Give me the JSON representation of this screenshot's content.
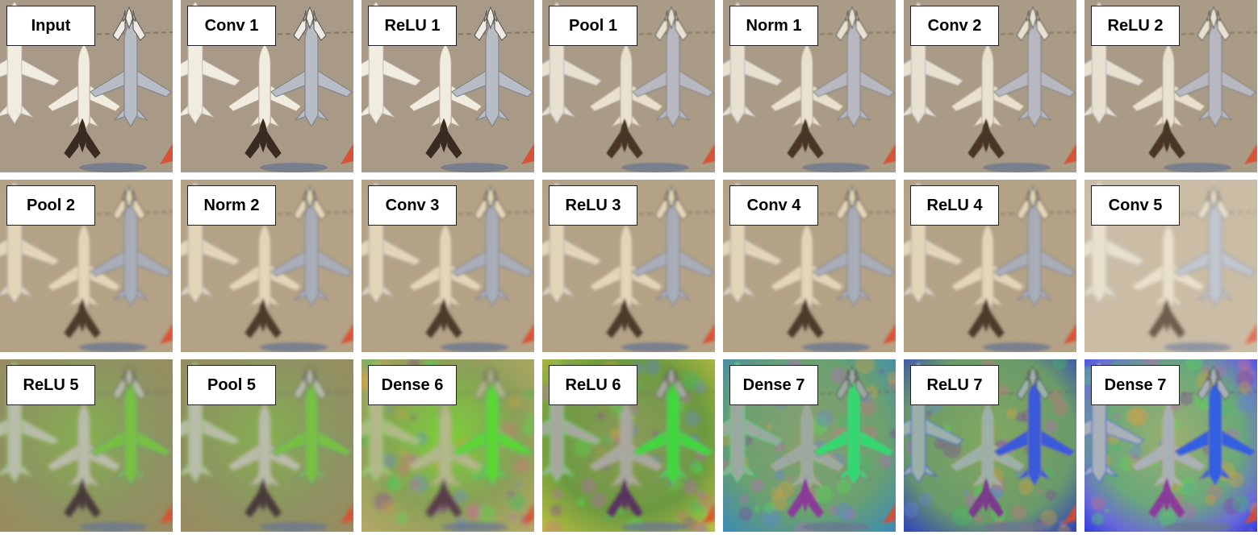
{
  "tiles": [
    {
      "label": "Input",
      "style": "photo"
    },
    {
      "label": "Conv 1",
      "style": "photo"
    },
    {
      "label": "ReLU 1",
      "style": "photo"
    },
    {
      "label": "Pool 1",
      "style": "early"
    },
    {
      "label": "Norm 1",
      "style": "early"
    },
    {
      "label": "Conv 2",
      "style": "early"
    },
    {
      "label": "ReLU 2",
      "style": "early"
    },
    {
      "label": "Pool 2",
      "style": "mid"
    },
    {
      "label": "Norm 2",
      "style": "mid"
    },
    {
      "label": "Conv 3",
      "style": "mid"
    },
    {
      "label": "ReLU 3",
      "style": "mid"
    },
    {
      "label": "Conv 4",
      "style": "mid"
    },
    {
      "label": "ReLU 4",
      "style": "mid"
    },
    {
      "label": "Conv 5",
      "style": "mid-faded"
    },
    {
      "label": "ReLU 5",
      "style": "green"
    },
    {
      "label": "Pool 5",
      "style": "green"
    },
    {
      "label": "Dense 6",
      "style": "green-bright"
    },
    {
      "label": "ReLU 6",
      "style": "noisy"
    },
    {
      "label": "Dense 7",
      "style": "abstract"
    },
    {
      "label": "ReLU 7",
      "style": "abstract-blue"
    },
    {
      "label": "Dense 7",
      "style": "abstract-rainbow"
    }
  ]
}
